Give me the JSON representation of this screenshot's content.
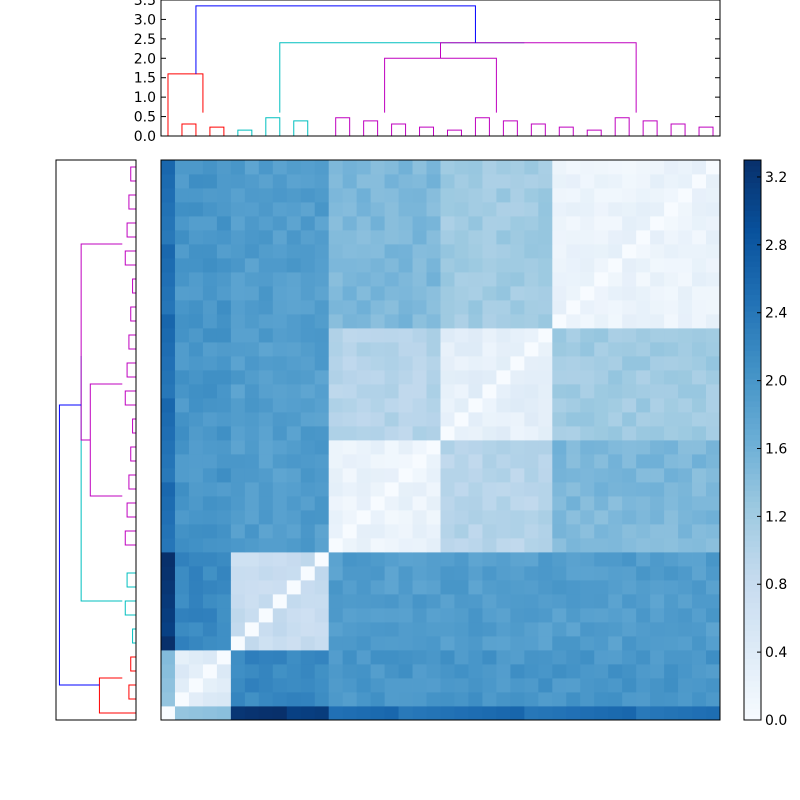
{
  "chart_data": {
    "type": "heatmap",
    "title": "",
    "description_free": true,
    "matrix_size": 40,
    "colormap": {
      "name": "Blues",
      "stops": [
        "#f7fbff",
        "#deebf7",
        "#c6dbef",
        "#9ecae1",
        "#6baed6",
        "#4292c6",
        "#2171b5",
        "#08519c",
        "#08306b"
      ]
    },
    "colorbar": {
      "range": [
        0.0,
        3.3
      ],
      "ticks": [
        "0.0",
        "0.4",
        "0.8",
        "1.2",
        "1.6",
        "2.0",
        "2.4",
        "2.8",
        "3.2"
      ]
    },
    "top_dendrogram": {
      "y_range": [
        0.0,
        3.5
      ],
      "y_ticks": [
        "0.0",
        "0.5",
        "1.0",
        "1.5",
        "2.0",
        "2.5",
        "3.0",
        "3.5"
      ]
    },
    "cluster_colors": {
      "olive": "#808000",
      "red": "#ff0000",
      "cyan": "#00bfbf",
      "magenta": "#bf00bf",
      "blue": "#0000ff"
    },
    "clusters": [
      {
        "name": "olive",
        "start": 0,
        "end": 1
      },
      {
        "name": "red",
        "start": 1,
        "end": 5
      },
      {
        "name": "cyan",
        "start": 5,
        "end": 12
      },
      {
        "name": "magenta",
        "start": 12,
        "end": 40
      }
    ],
    "cluster_distance_matrix": [
      [
        0.3,
        1.4,
        3.2,
        2.5
      ],
      [
        1.4,
        0.4,
        2.2,
        2.0
      ],
      [
        3.2,
        2.2,
        0.8,
        1.9
      ],
      [
        2.5,
        2.0,
        1.9,
        0.6
      ]
    ],
    "subblock_distances": {
      "magenta_sub": [
        [
          0.2,
          1.0,
          1.5
        ],
        [
          1.0,
          0.3,
          1.2
        ],
        [
          1.5,
          1.2,
          0.2
        ]
      ],
      "magenta_sub_bounds": [
        12,
        20,
        28,
        40
      ]
    },
    "dendrogram_merges": [
      {
        "left": [
          0,
          1
        ],
        "right": [
          1,
          5
        ],
        "height": 1.6,
        "color": "red"
      },
      {
        "left": [
          5,
          12
        ],
        "right": [
          12,
          40
        ],
        "height": 2.4,
        "color": "cyan"
      },
      {
        "left": [
          12,
          20
        ],
        "right": [
          20,
          28
        ],
        "height": 2.0,
        "color": "magenta"
      },
      {
        "left": [
          12,
          28
        ],
        "right": [
          28,
          40
        ],
        "height": 2.4,
        "color": "magenta"
      },
      {
        "left": [
          0,
          5
        ],
        "right": [
          5,
          40
        ],
        "height": 3.35,
        "color": "blue"
      }
    ]
  }
}
